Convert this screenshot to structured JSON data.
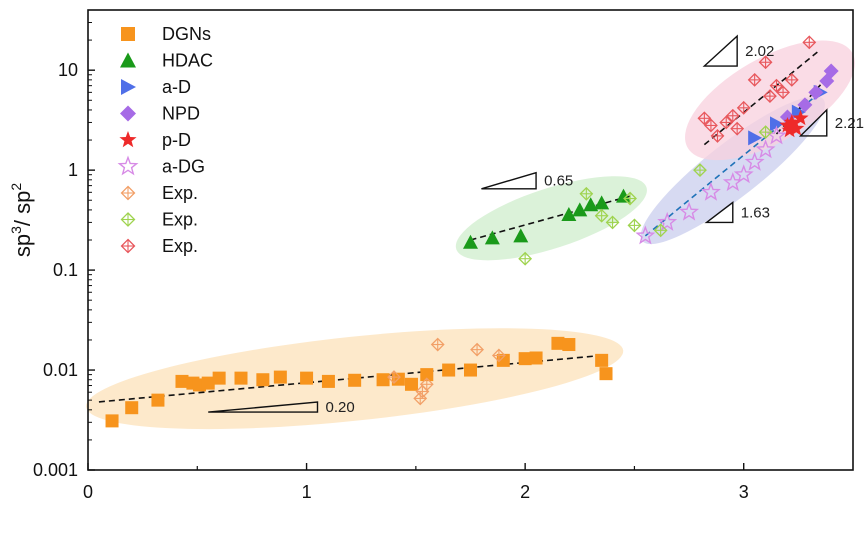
{
  "chart_data": {
    "type": "scatter",
    "title": "",
    "xlabel": "",
    "ylabel_main": "sp",
    "ylabel_sup1": "3",
    "ylabel_mid": "/ sp",
    "ylabel_sup2": "2",
    "x_scale": "linear",
    "y_scale": "log",
    "xlim": [
      0,
      3.5
    ],
    "ylim": [
      0.001,
      40
    ],
    "x_ticks": [
      0,
      1,
      2,
      3
    ],
    "y_ticks": [
      0.001,
      0.01,
      0.1,
      1,
      10
    ],
    "x_tick_labels": [
      "0",
      "1",
      "2",
      "3"
    ],
    "y_tick_labels": [
      "0.001",
      "0.01",
      "0.1",
      "1",
      "10"
    ],
    "grid": false,
    "legend_position": "top-left",
    "series": [
      {
        "name": "DGNs",
        "marker": "square",
        "color": "#f7941d",
        "points": [
          [
            0.11,
            0.0031
          ],
          [
            0.2,
            0.0042
          ],
          [
            0.32,
            0.005
          ],
          [
            0.43,
            0.0077
          ],
          [
            0.48,
            0.0074
          ],
          [
            0.51,
            0.0071
          ],
          [
            0.55,
            0.0074
          ],
          [
            0.6,
            0.0083
          ],
          [
            0.7,
            0.0083
          ],
          [
            0.8,
            0.008
          ],
          [
            0.88,
            0.0085
          ],
          [
            1.0,
            0.0083
          ],
          [
            1.1,
            0.0077
          ],
          [
            1.22,
            0.0079
          ],
          [
            1.35,
            0.008
          ],
          [
            1.42,
            0.0081
          ],
          [
            1.48,
            0.0072
          ],
          [
            1.55,
            0.009
          ],
          [
            1.65,
            0.01
          ],
          [
            1.75,
            0.01
          ],
          [
            1.9,
            0.0125
          ],
          [
            2.0,
            0.013
          ],
          [
            2.05,
            0.0132
          ],
          [
            2.15,
            0.0185
          ],
          [
            2.2,
            0.018
          ],
          [
            2.35,
            0.0125
          ],
          [
            2.37,
            0.0092
          ]
        ]
      },
      {
        "name": "HDAC",
        "marker": "triangle-up",
        "color": "#1a9a1a",
        "points": [
          [
            1.75,
            0.19
          ],
          [
            1.85,
            0.21
          ],
          [
            1.98,
            0.22
          ],
          [
            2.2,
            0.36
          ],
          [
            2.25,
            0.4
          ],
          [
            2.3,
            0.45
          ],
          [
            2.35,
            0.47
          ],
          [
            2.45,
            0.55
          ]
        ]
      },
      {
        "name": "a-D",
        "marker": "triangle-right",
        "color": "#4f6fe8",
        "points": [
          [
            3.05,
            2.1
          ],
          [
            3.15,
            2.9
          ],
          [
            3.25,
            3.8
          ],
          [
            3.35,
            6.0
          ]
        ]
      },
      {
        "name": "NPD",
        "marker": "diamond",
        "color": "#a66be6",
        "points": [
          [
            3.2,
            3.4
          ],
          [
            3.28,
            4.5
          ],
          [
            3.33,
            6.0
          ],
          [
            3.38,
            7.8
          ],
          [
            3.4,
            9.8
          ]
        ]
      },
      {
        "name": "p-D",
        "marker": "star",
        "color": "#ee2a2a",
        "points": [
          [
            3.2,
            2.8
          ],
          [
            3.22,
            3.0
          ],
          [
            3.24,
            2.6
          ],
          [
            3.26,
            3.3
          ],
          [
            3.21,
            2.5
          ]
        ]
      },
      {
        "name": "a-DG",
        "marker": "star-open",
        "color": "#d78be6",
        "points": [
          [
            2.55,
            0.22
          ],
          [
            2.65,
            0.3
          ],
          [
            2.75,
            0.38
          ],
          [
            2.85,
            0.6
          ],
          [
            2.95,
            0.75
          ],
          [
            3.0,
            0.9
          ],
          [
            3.05,
            1.2
          ],
          [
            3.1,
            1.6
          ],
          [
            3.15,
            2.2
          ]
        ]
      },
      {
        "name": "Exp.",
        "marker": "diamond-cross",
        "color": "#f2a068",
        "points": [
          [
            1.6,
            0.018
          ],
          [
            1.78,
            0.016
          ],
          [
            1.88,
            0.014
          ],
          [
            1.52,
            0.0052
          ],
          [
            1.53,
            0.0061
          ],
          [
            1.55,
            0.0072
          ],
          [
            1.4,
            0.0085
          ]
        ]
      },
      {
        "name": "Exp.",
        "marker": "diamond-cross",
        "color": "#9fd34f",
        "points": [
          [
            2.0,
            0.13
          ],
          [
            2.28,
            0.58
          ],
          [
            2.35,
            0.35
          ],
          [
            2.4,
            0.3
          ],
          [
            2.48,
            0.52
          ],
          [
            2.5,
            0.28
          ],
          [
            2.62,
            0.25
          ],
          [
            2.8,
            1.0
          ],
          [
            3.1,
            2.4
          ]
        ]
      },
      {
        "name": "Exp.",
        "marker": "diamond-cross",
        "color": "#e8585d",
        "points": [
          [
            2.82,
            3.3
          ],
          [
            2.85,
            2.8
          ],
          [
            2.88,
            2.2
          ],
          [
            2.92,
            3.0
          ],
          [
            2.95,
            3.5
          ],
          [
            2.97,
            2.6
          ],
          [
            3.0,
            4.2
          ],
          [
            3.05,
            8.0
          ],
          [
            3.1,
            12.0
          ],
          [
            3.12,
            5.5
          ],
          [
            3.15,
            7.0
          ],
          [
            3.18,
            6.0
          ],
          [
            3.22,
            8.0
          ],
          [
            3.3,
            19.0
          ]
        ]
      }
    ],
    "fit_lines": [
      {
        "color": "#111111",
        "dash": true,
        "from": [
          0.05,
          0.0048
        ],
        "to": [
          2.35,
          0.014
        ]
      },
      {
        "color": "#111111",
        "dash": true,
        "from": [
          1.75,
          0.2
        ],
        "to": [
          2.48,
          0.55
        ]
      },
      {
        "color": "#111111",
        "dash": true,
        "from": [
          2.82,
          1.8
        ],
        "to": [
          3.35,
          16.0
        ]
      },
      {
        "color": "#1f73b8",
        "dash": true,
        "from": [
          2.55,
          0.22
        ],
        "to": [
          3.35,
          6.0
        ]
      },
      {
        "color": "#111111",
        "dash": true,
        "from": [
          3.15,
          2.3
        ],
        "to": [
          3.42,
          10.5
        ]
      }
    ],
    "regions": [
      {
        "color": "#fce1ba",
        "center": [
          1.22,
          0.0082
        ],
        "rx_px": 270,
        "ry_px": 42,
        "rotate": -6
      },
      {
        "color": "#cfeecc",
        "center": [
          2.12,
          0.33
        ],
        "rx_px": 100,
        "ry_px": 30,
        "rotate": -18
      },
      {
        "color": "#c9cdee",
        "center": [
          2.95,
          1.0
        ],
        "rx_px": 115,
        "ry_px": 27,
        "rotate": -38
      },
      {
        "color": "#f8d0de",
        "center": [
          3.12,
          5.0
        ],
        "rx_px": 95,
        "ry_px": 42,
        "rotate": -30
      }
    ],
    "slope_annotations": [
      {
        "label": "0.20",
        "corner": [
          1.05,
          0.0038
        ],
        "run": 0.5,
        "rise_dec": 0.1
      },
      {
        "label": "0.65",
        "corner": [
          2.05,
          0.65
        ],
        "run": 0.25,
        "rise_dec": 0.162
      },
      {
        "label": "1.63",
        "corner": [
          2.95,
          0.3
        ],
        "run": 0.12,
        "rise_dec": 0.2
      },
      {
        "label": "2.02",
        "corner": [
          2.97,
          11.0
        ],
        "run": 0.15,
        "rise_dec": 0.3
      },
      {
        "label": "2.21",
        "corner": [
          3.38,
          2.2
        ],
        "run": 0.12,
        "rise_dec": 0.26
      }
    ]
  }
}
